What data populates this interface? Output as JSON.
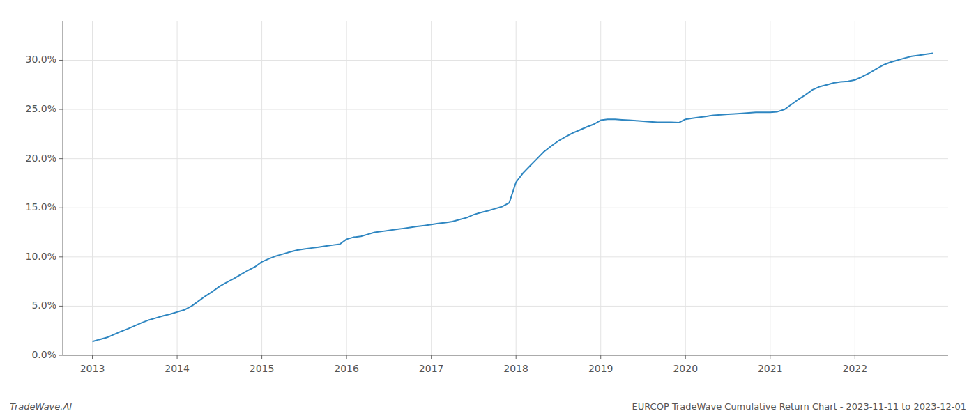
{
  "chart_data": {
    "type": "line",
    "title": "EURCOP TradeWave Cumulative Return Chart - 2023-11-11 to 2023-12-01",
    "annotations": [
      "TradeWave.AI"
    ],
    "color": "#2E86C1",
    "grid": true,
    "x": [
      2013.0,
      2013.08,
      2013.17,
      2013.25,
      2013.33,
      2013.42,
      2013.5,
      2013.58,
      2013.67,
      2013.75,
      2013.83,
      2013.92,
      2014.0,
      2014.08,
      2014.17,
      2014.25,
      2014.33,
      2014.42,
      2014.5,
      2014.58,
      2014.67,
      2014.75,
      2014.83,
      2014.92,
      2015.0,
      2015.08,
      2015.17,
      2015.25,
      2015.33,
      2015.42,
      2015.5,
      2015.58,
      2015.67,
      2015.75,
      2015.83,
      2015.92,
      2016.0,
      2016.08,
      2016.17,
      2016.25,
      2016.33,
      2016.42,
      2016.5,
      2016.58,
      2016.67,
      2016.75,
      2016.83,
      2016.92,
      2017.0,
      2017.08,
      2017.17,
      2017.25,
      2017.33,
      2017.42,
      2017.5,
      2017.58,
      2017.67,
      2017.75,
      2017.83,
      2017.92,
      2018.0,
      2018.08,
      2018.17,
      2018.25,
      2018.33,
      2018.42,
      2018.5,
      2018.58,
      2018.67,
      2018.75,
      2018.83,
      2018.92,
      2019.0,
      2019.08,
      2019.17,
      2019.25,
      2019.33,
      2019.42,
      2019.5,
      2019.58,
      2019.67,
      2019.75,
      2019.83,
      2019.92,
      2020.0,
      2020.08,
      2020.17,
      2020.25,
      2020.33,
      2020.42,
      2020.5,
      2020.58,
      2020.67,
      2020.75,
      2020.83,
      2020.92,
      2021.0,
      2021.08,
      2021.17,
      2021.25,
      2021.33,
      2021.42,
      2021.5,
      2021.58,
      2021.67,
      2021.75,
      2021.83,
      2021.92,
      2022.0,
      2022.08,
      2022.17,
      2022.25,
      2022.33,
      2022.42,
      2022.5,
      2022.58,
      2022.67,
      2022.75,
      2022.83,
      2022.92
    ],
    "values": [
      1.4,
      1.6,
      1.8,
      2.1,
      2.4,
      2.7,
      3.0,
      3.3,
      3.6,
      3.8,
      4.0,
      4.2,
      4.4,
      4.6,
      5.0,
      5.5,
      6.0,
      6.5,
      7.0,
      7.4,
      7.8,
      8.2,
      8.6,
      9.0,
      9.5,
      9.8,
      10.1,
      10.3,
      10.5,
      10.7,
      10.8,
      10.9,
      11.0,
      11.1,
      11.2,
      11.3,
      11.8,
      12.0,
      12.1,
      12.3,
      12.5,
      12.6,
      12.7,
      12.8,
      12.9,
      13.0,
      13.1,
      13.2,
      13.3,
      13.4,
      13.5,
      13.6,
      13.8,
      14.0,
      14.3,
      14.5,
      14.7,
      14.9,
      15.1,
      15.5,
      17.6,
      18.5,
      19.3,
      20.0,
      20.7,
      21.3,
      21.8,
      22.2,
      22.6,
      22.9,
      23.2,
      23.5,
      23.9,
      24.0,
      24.0,
      23.95,
      23.9,
      23.85,
      23.8,
      23.75,
      23.7,
      23.7,
      23.7,
      23.65,
      24.0,
      24.1,
      24.2,
      24.3,
      24.4,
      24.45,
      24.5,
      24.55,
      24.6,
      24.65,
      24.7,
      24.7,
      24.7,
      24.75,
      25.0,
      25.5,
      26.0,
      26.5,
      27.0,
      27.3,
      27.5,
      27.7,
      27.8,
      27.85,
      28.0,
      28.3,
      28.7,
      29.1,
      29.5,
      29.8,
      30.0,
      30.2,
      30.4,
      30.5,
      30.6,
      30.7
    ],
    "xlim": [
      2012.65,
      2023.1
    ],
    "xticks": [
      2013,
      2014,
      2015,
      2016,
      2017,
      2018,
      2019,
      2020,
      2021,
      2022
    ],
    "ylim": [
      0.0,
      34.0
    ],
    "yticks": [
      {
        "value": 0.0,
        "label": "0.0%"
      },
      {
        "value": 5.0,
        "label": "5.0%"
      },
      {
        "value": 10.0,
        "label": "10.0%"
      },
      {
        "value": 15.0,
        "label": "15.0%"
      },
      {
        "value": 20.0,
        "label": "20.0%"
      },
      {
        "value": 25.0,
        "label": "25.0%"
      },
      {
        "value": 30.0,
        "label": "30.0%"
      }
    ]
  }
}
